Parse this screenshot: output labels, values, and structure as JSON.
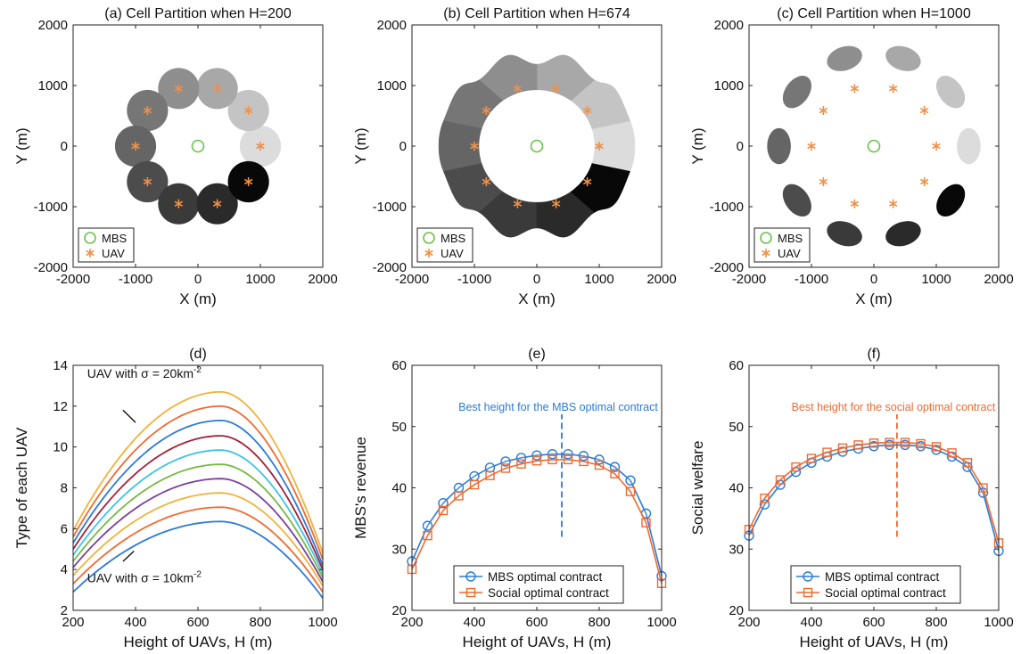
{
  "colors": {
    "mbs": "#2b7bd6",
    "social": "#f06a30",
    "uav_marker": "#f0904a",
    "mbs_marker": "#6cc04a",
    "axis": "#222222"
  },
  "chart_data": [
    {
      "id": "a",
      "type": "scatter",
      "title": "(a) Cell Partition when H=200",
      "xlabel": "X (m)",
      "ylabel": "Y (m)",
      "xlim": [
        -2000,
        2000
      ],
      "ylim": [
        -2000,
        2000
      ],
      "xticks": [
        -2000,
        -1000,
        0,
        1000,
        2000
      ],
      "yticks": [
        -2000,
        -1000,
        0,
        1000,
        2000
      ],
      "mbs": {
        "x": 0,
        "y": 0
      },
      "uavs": [
        {
          "x": 1000,
          "y": 0
        },
        {
          "x": 809,
          "y": 588
        },
        {
          "x": 309,
          "y": 951
        },
        {
          "x": -309,
          "y": 951
        },
        {
          "x": -809,
          "y": 588
        },
        {
          "x": -1000,
          "y": 0
        },
        {
          "x": -809,
          "y": -588
        },
        {
          "x": -309,
          "y": -951
        },
        {
          "x": 309,
          "y": -951
        },
        {
          "x": 809,
          "y": -588
        }
      ],
      "cell_shades": [
        "#dcdcdc",
        "#c4c4c4",
        "#a8a8a8",
        "#8e8e8e",
        "#767676",
        "#656565",
        "#4c4c4c",
        "#3a3a3a",
        "#2a2a2a",
        "#080808"
      ],
      "cell_radius": 330,
      "legend": {
        "position": "bottom-left",
        "entries": [
          "MBS",
          "UAV"
        ]
      }
    },
    {
      "id": "b",
      "type": "scatter",
      "title": "(b) Cell Partition when H=674",
      "xlabel": "X (m)",
      "ylabel": "Y (m)",
      "xlim": [
        -2000,
        2000
      ],
      "ylim": [
        -2000,
        2000
      ],
      "xticks": [
        -2000,
        -1000,
        0,
        1000,
        2000
      ],
      "yticks": [
        -2000,
        -1000,
        0,
        1000,
        2000
      ],
      "mbs": {
        "x": 0,
        "y": 0
      },
      "ring_inner": 930,
      "ring_outer": 1570,
      "cell_shades": [
        "#dcdcdc",
        "#c4c4c4",
        "#a8a8a8",
        "#8e8e8e",
        "#767676",
        "#656565",
        "#4c4c4c",
        "#3a3a3a",
        "#2a2a2a",
        "#080808"
      ],
      "legend": {
        "position": "bottom-left",
        "entries": [
          "MBS",
          "UAV"
        ]
      }
    },
    {
      "id": "c",
      "type": "scatter",
      "title": "(c) Cell Partition when H=1000",
      "xlabel": "X (m)",
      "ylabel": "Y (m)",
      "xlim": [
        -2000,
        2000
      ],
      "ylim": [
        -2000,
        2000
      ],
      "xticks": [
        -2000,
        -1000,
        0,
        1000,
        2000
      ],
      "yticks": [
        -2000,
        -1000,
        0,
        1000,
        2000
      ],
      "mbs": {
        "x": 0,
        "y": 0
      },
      "cell_center_distance": 1520,
      "cell_radii": [
        290,
        190
      ],
      "cell_shades": [
        "#dcdcdc",
        "#c4c4c4",
        "#a8a8a8",
        "#8e8e8e",
        "#767676",
        "#656565",
        "#4c4c4c",
        "#3a3a3a",
        "#2a2a2a",
        "#080808"
      ],
      "legend": {
        "position": "bottom-left",
        "entries": [
          "MBS",
          "UAV"
        ]
      }
    },
    {
      "id": "d",
      "type": "line",
      "title": "(d)",
      "xlabel": "Height of UAVs, H (m)",
      "ylabel": "Type of each UAV",
      "xlim": [
        200,
        1000
      ],
      "ylim": [
        2,
        14
      ],
      "xticks": [
        200,
        400,
        600,
        800,
        1000
      ],
      "yticks": [
        2,
        4,
        6,
        8,
        10,
        12,
        14
      ],
      "series": [
        {
          "peak": 6.35,
          "start": 2.9,
          "end": 2.6,
          "color": "#2b7bd6"
        },
        {
          "peak": 7.05,
          "start": 3.3,
          "end": 2.9,
          "color": "#f06a30"
        },
        {
          "peak": 7.75,
          "start": 3.7,
          "end": 3.2,
          "color": "#f2b23a"
        },
        {
          "peak": 8.45,
          "start": 4.1,
          "end": 3.4,
          "color": "#7b3f9e"
        },
        {
          "peak": 9.15,
          "start": 4.4,
          "end": 3.6,
          "color": "#77b843"
        },
        {
          "peak": 9.85,
          "start": 4.7,
          "end": 3.8,
          "color": "#3cc3e8"
        },
        {
          "peak": 10.55,
          "start": 5.0,
          "end": 4.0,
          "color": "#a3203a"
        },
        {
          "peak": 11.3,
          "start": 5.3,
          "end": 4.2,
          "color": "#2b7bd6"
        },
        {
          "peak": 12.0,
          "start": 5.6,
          "end": 4.5,
          "color": "#f06a30"
        },
        {
          "peak": 12.7,
          "start": 5.9,
          "end": 4.8,
          "color": "#f2b23a"
        }
      ],
      "annotations": [
        {
          "text": "UAV with σ = 20km",
          "sup": "-2",
          "at": {
            "x": 245,
            "y": 13.6
          },
          "line": [
            {
              "x": 360,
              "y": 11.8
            },
            {
              "x": 400,
              "y": 11.2
            }
          ]
        },
        {
          "text": "UAV with σ = 10km",
          "sup": "-2",
          "at": {
            "x": 245,
            "y": 3.6
          },
          "line": [
            {
              "x": 360,
              "y": 4.4
            },
            {
              "x": 395,
              "y": 4.9
            }
          ]
        }
      ]
    },
    {
      "id": "e",
      "type": "line",
      "title": "(e)",
      "xlabel": "Height of UAVs, H (m)",
      "ylabel": "MBS's revenue",
      "xlim": [
        200,
        1000
      ],
      "ylim": [
        20,
        60
      ],
      "xticks": [
        200,
        400,
        600,
        800,
        1000
      ],
      "yticks": [
        20,
        30,
        40,
        50,
        60
      ],
      "x": [
        200,
        250,
        300,
        350,
        400,
        450,
        500,
        550,
        600,
        650,
        700,
        750,
        800,
        850,
        900,
        950,
        1000
      ],
      "series": [
        {
          "name": "MBS optimal contract",
          "marker": "circle",
          "color": "#2b7bd6",
          "values": [
            28.0,
            33.8,
            37.5,
            40.0,
            41.9,
            43.3,
            44.3,
            44.9,
            45.3,
            45.5,
            45.5,
            45.2,
            44.6,
            43.4,
            41.2,
            35.8,
            25.6
          ]
        },
        {
          "name": "Social optimal contract",
          "marker": "square",
          "color": "#f06a30",
          "values": [
            26.7,
            32.2,
            36.3,
            38.7,
            40.5,
            42.0,
            43.2,
            43.9,
            44.4,
            44.6,
            44.6,
            44.3,
            43.7,
            42.3,
            39.4,
            34.3,
            24.4
          ]
        }
      ],
      "vline": {
        "x": 680,
        "y": [
          32,
          52
        ],
        "color": "#2b7bd6",
        "label": "Best height for the MBS optimal contract"
      },
      "legend": {
        "position": "bottom-center"
      }
    },
    {
      "id": "f",
      "type": "line",
      "title": "(f)",
      "xlabel": "Height of UAVs, H (m)",
      "ylabel": "Social welfare",
      "xlim": [
        200,
        1000
      ],
      "ylim": [
        20,
        60
      ],
      "xticks": [
        200,
        400,
        600,
        800,
        1000
      ],
      "yticks": [
        20,
        30,
        40,
        50,
        60
      ],
      "x": [
        200,
        250,
        300,
        350,
        400,
        450,
        500,
        550,
        600,
        650,
        700,
        750,
        800,
        850,
        900,
        950,
        1000
      ],
      "series": [
        {
          "name": "MBS optimal contract",
          "marker": "circle",
          "color": "#2b7bd6",
          "values": [
            32.2,
            37.3,
            40.5,
            42.6,
            44.1,
            45.1,
            45.9,
            46.4,
            46.8,
            47.0,
            47.0,
            46.8,
            46.2,
            45.1,
            43.4,
            39.2,
            29.7
          ]
        },
        {
          "name": "Social optimal contract",
          "marker": "square",
          "color": "#f06a30",
          "values": [
            33.2,
            38.3,
            41.3,
            43.4,
            44.8,
            45.8,
            46.5,
            47.0,
            47.3,
            47.4,
            47.4,
            47.2,
            46.7,
            45.7,
            44.1,
            40.0,
            31.0
          ]
        }
      ],
      "vline": {
        "x": 674,
        "y": [
          32,
          52
        ],
        "color": "#f06a30",
        "label": "Best height for the social optimal contract"
      },
      "legend": {
        "position": "bottom-center"
      }
    }
  ]
}
